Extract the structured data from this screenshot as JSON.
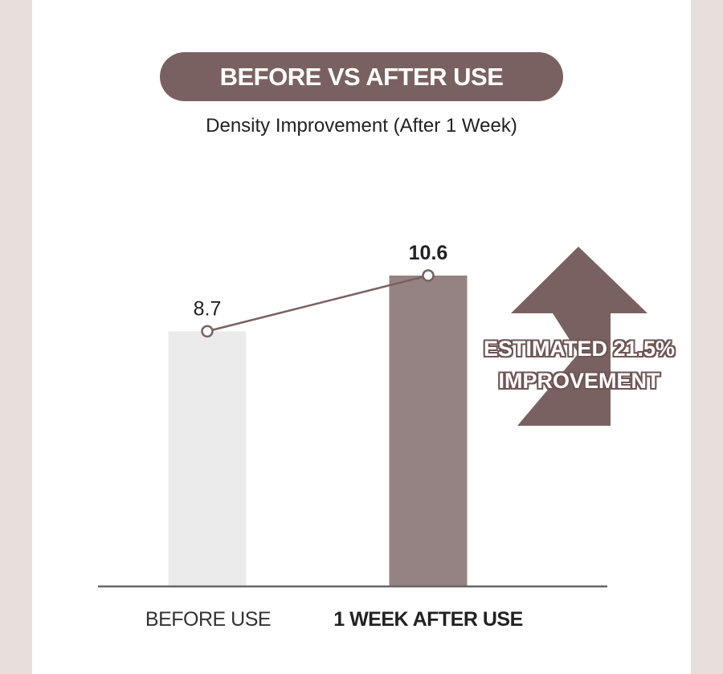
{
  "header": {
    "badge": "BEFORE VS AFTER USE",
    "subtitle": "Density Improvement (After 1 Week)"
  },
  "callout": {
    "line1": "ESTIMATED 21.5%",
    "line2": "IMPROVEMENT"
  },
  "colors": {
    "background": "#e6dfdc",
    "badge": "#7a6161",
    "bar_before": "#ebebeb",
    "bar_after": "#958383",
    "line": "#7a6161",
    "arrow": "#7a6161",
    "axis": "#666666"
  },
  "chart_data": {
    "type": "bar",
    "categories": [
      "BEFORE USE",
      "1 WEEK AFTER USE"
    ],
    "values": [
      8.7,
      10.6
    ],
    "value_labels": [
      "8.7",
      "10.6"
    ],
    "ylim": [
      0,
      12.6
    ],
    "overlay": "line",
    "grid": false,
    "legend": "none"
  }
}
